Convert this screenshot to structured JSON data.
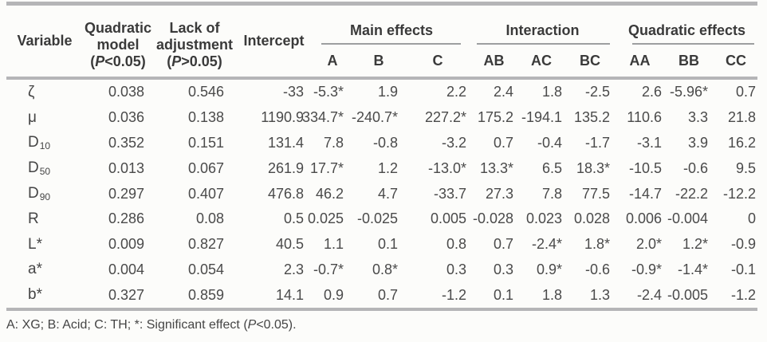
{
  "table": {
    "columns": {
      "variable": "Variable",
      "quadratic_model": {
        "line1": "Quadratic",
        "line2": "model",
        "paren_pre": "(",
        "p": "P",
        "paren_post": "<0.05)"
      },
      "lack_of_adjustment": {
        "line1": "Lack of",
        "line2": "adjustment",
        "paren_pre": "(",
        "p": "P",
        "paren_post": ">0.05)"
      },
      "intercept": "Intercept",
      "groups": [
        {
          "label": "Main effects",
          "subcolumns": [
            "A",
            "B",
            "C"
          ]
        },
        {
          "label": "Interaction",
          "subcolumns": [
            "AB",
            "AC",
            "BC"
          ]
        },
        {
          "label": "Quadratic effects",
          "subcolumns": [
            "AA",
            "BB",
            "CC"
          ]
        }
      ]
    },
    "rows": [
      {
        "variable": {
          "base": "ζ",
          "sub": ""
        },
        "values": [
          "0.038",
          "0.546",
          "-33",
          "-5.3*",
          "1.9",
          "2.2",
          "2.4",
          "1.8",
          "-2.5",
          "2.6",
          "-5.96*",
          "0.7"
        ]
      },
      {
        "variable": {
          "base": "μ",
          "sub": ""
        },
        "values": [
          "0.036",
          "0.138",
          "1190.9",
          "334.7*",
          "-240.7*",
          "227.2*",
          "175.2",
          "-194.1",
          "135.2",
          "110.6",
          "3.3",
          "21.8"
        ]
      },
      {
        "variable": {
          "base": "D",
          "sub": "10"
        },
        "values": [
          "0.352",
          "0.151",
          "131.4",
          "7.8",
          "-0.8",
          "-3.2",
          "0.7",
          "-0.4",
          "-1.7",
          "-3.1",
          "3.9",
          "16.2"
        ]
      },
      {
        "variable": {
          "base": "D",
          "sub": "50"
        },
        "values": [
          "0.013",
          "0.067",
          "261.9",
          "17.7*",
          "1.2",
          "-13.0*",
          "13.3*",
          "6.5",
          "18.3*",
          "-10.5",
          "-0.6",
          "9.5"
        ]
      },
      {
        "variable": {
          "base": "D",
          "sub": "90"
        },
        "values": [
          "0.297",
          "0.407",
          "476.8",
          "46.2",
          "4.7",
          "-33.7",
          "27.3",
          "7.8",
          "77.5",
          "-14.7",
          "-22.2",
          "-12.2"
        ]
      },
      {
        "variable": {
          "base": "R",
          "sub": ""
        },
        "values": [
          "0.286",
          "0.08",
          "0.5",
          "0.025",
          "-0.025",
          "0.005",
          "-0.028",
          "0.023",
          "0.028",
          "0.006",
          "-0.004",
          "0"
        ]
      },
      {
        "variable": {
          "base": "L*",
          "sub": ""
        },
        "values": [
          "0.009",
          "0.827",
          "40.5",
          "1.1",
          "0.1",
          "0.8",
          "0.7",
          "-2.4*",
          "1.8*",
          "2.0*",
          "1.2*",
          "-0.9"
        ]
      },
      {
        "variable": {
          "base": "a*",
          "sub": ""
        },
        "values": [
          "0.004",
          "0.054",
          "2.3",
          "-0.7*",
          "0.8*",
          "0.3",
          "0.3",
          "0.9*",
          "-0.6",
          "-0.9*",
          "-1.4*",
          "-0.1"
        ]
      },
      {
        "variable": {
          "base": "b*",
          "sub": ""
        },
        "values": [
          "0.327",
          "0.859",
          "14.1",
          "0.9",
          "0.7",
          "-1.2",
          "0.1",
          "1.8",
          "1.3",
          "-2.4",
          "-0.005",
          "-1.2"
        ]
      }
    ],
    "footnote": {
      "pre": "A: XG; B: Acid; C: TH; *: Significant effect (",
      "p": "P",
      "post": "<0.05)."
    }
  },
  "colors": {
    "rule": "#b5b5b7",
    "group_underline": "#9d9fa0",
    "header_text": "#3a3a3a",
    "data_text": "#4a4a4a",
    "background": "#fcfcfa"
  }
}
